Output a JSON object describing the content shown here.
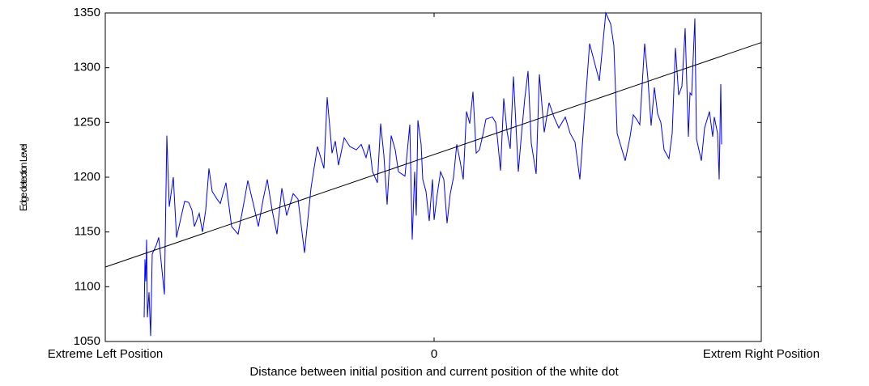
{
  "chart_data": {
    "type": "line",
    "xlabel": "Distance between initial position and current position of the white dot",
    "ylabel": "Edge detection Level",
    "xlim": [
      -406,
      404
    ],
    "xticks": [
      {
        "value": -406,
        "label": "Extreme Left Position"
      },
      0,
      {
        "value": 404,
        "label": "Extrem Right Position"
      }
    ],
    "ylim": [
      1050,
      1350
    ],
    "yticks": [
      1050,
      1100,
      1150,
      1200,
      1250,
      1300,
      1350
    ],
    "series": [
      {
        "color": "#0000ff",
        "x": [
          -358,
          -357,
          -356,
          -355,
          -354,
          -352,
          -350,
          -348,
          -343,
          -340,
          -333,
          -330,
          -327,
          -322,
          -318,
          -312,
          -308,
          -303,
          -299,
          -296,
          -290,
          -286,
          -282,
          -278,
          -274,
          -268,
          -264,
          -257,
          -250,
          -242,
          -234,
          -230,
          -223,
          -217,
          -211,
          -206,
          -200,
          -194,
          -188,
          -182,
          -174,
          -168,
          -160,
          -152,
          -144,
          -136,
          -132,
          -126,
          -122,
          -118,
          -111,
          -104,
          -96,
          -90,
          -84,
          -80,
          -76,
          -70,
          -66,
          -62,
          -58,
          -53,
          -48,
          -44,
          -40,
          -36,
          -30,
          -27,
          -24,
          -22,
          -20,
          -16,
          -14,
          -10,
          -6,
          -2,
          0,
          4,
          8,
          12,
          16,
          20,
          24,
          28,
          32,
          36,
          40,
          44,
          48,
          52,
          56,
          60,
          64,
          68,
          72,
          76,
          78,
          82,
          86,
          90,
          94,
          98,
          104,
          108,
          112,
          116,
          120,
          126,
          130,
          136,
          142,
          148,
          154,
          162,
          168,
          174,
          180,
          186,
          192,
          198,
          204,
          212,
          218,
          222,
          226,
          236,
          242,
          246,
          250,
          254,
          260,
          264,
          268,
          272,
          276,
          280,
          284,
          290,
          294,
          298,
          302,
          306,
          310,
          314,
          316,
          318,
          322,
          324,
          330,
          334,
          340,
          344,
          346,
          350,
          352,
          354,
          355
        ],
        "values": [
          1072,
          1125,
          1105,
          1143,
          1072,
          1095,
          1055,
          1130,
          1138,
          1145,
          1093,
          1238,
          1173,
          1200,
          1145,
          1165,
          1178,
          1177,
          1170,
          1155,
          1167,
          1150,
          1170,
          1208,
          1187,
          1180,
          1176,
          1195,
          1155,
          1148,
          1180,
          1197,
          1175,
          1155,
          1180,
          1198,
          1170,
          1148,
          1190,
          1165,
          1185,
          1180,
          1131,
          1190,
          1228,
          1208,
          1273,
          1222,
          1233,
          1211,
          1236,
          1228,
          1225,
          1230,
          1218,
          1230,
          1205,
          1195,
          1249,
          1220,
          1175,
          1238,
          1225,
          1205,
          1203,
          1201,
          1248,
          1143,
          1205,
          1165,
          1252,
          1230,
          1198,
          1187,
          1160,
          1198,
          1161,
          1185,
          1205,
          1198,
          1158,
          1185,
          1200,
          1230,
          1215,
          1198,
          1260,
          1249,
          1278,
          1222,
          1225,
          1238,
          1253,
          1254,
          1255,
          1250,
          1237,
          1206,
          1272,
          1242,
          1226,
          1292,
          1205,
          1240,
          1272,
          1297,
          1231,
          1203,
          1294,
          1241,
          1268,
          1255,
          1245,
          1255,
          1240,
          1232,
          1198,
          1260,
          1322,
          1305,
          1288,
          1350,
          1340,
          1320,
          1240,
          1215,
          1237,
          1257,
          1253,
          1248,
          1322,
          1290,
          1247,
          1282,
          1258,
          1250,
          1225,
          1217,
          1240,
          1318,
          1275,
          1283,
          1336,
          1237,
          1277,
          1275,
          1345,
          1235,
          1215,
          1245,
          1260,
          1237,
          1255,
          1240,
          1198,
          1285,
          1230
        ]
      },
      {
        "color": "#000000",
        "x": [
          -406,
          404
        ],
        "values": [
          1118,
          1323
        ]
      }
    ]
  }
}
